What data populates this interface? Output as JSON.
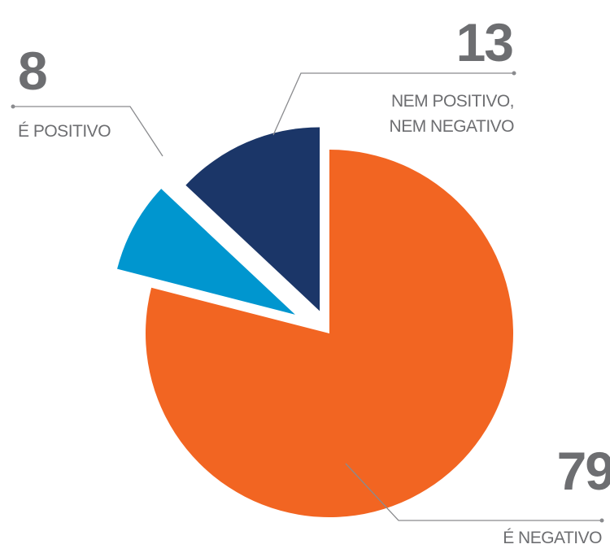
{
  "chart_data": {
    "type": "pie",
    "categories": [
      "É NEGATIVO",
      "É POSITIVO",
      "NEM POSITIVO, NEM NEGATIVO"
    ],
    "values": [
      79,
      8,
      13
    ],
    "colors": [
      "#f26522",
      "#0096cf",
      "#1b3668"
    ]
  }
}
